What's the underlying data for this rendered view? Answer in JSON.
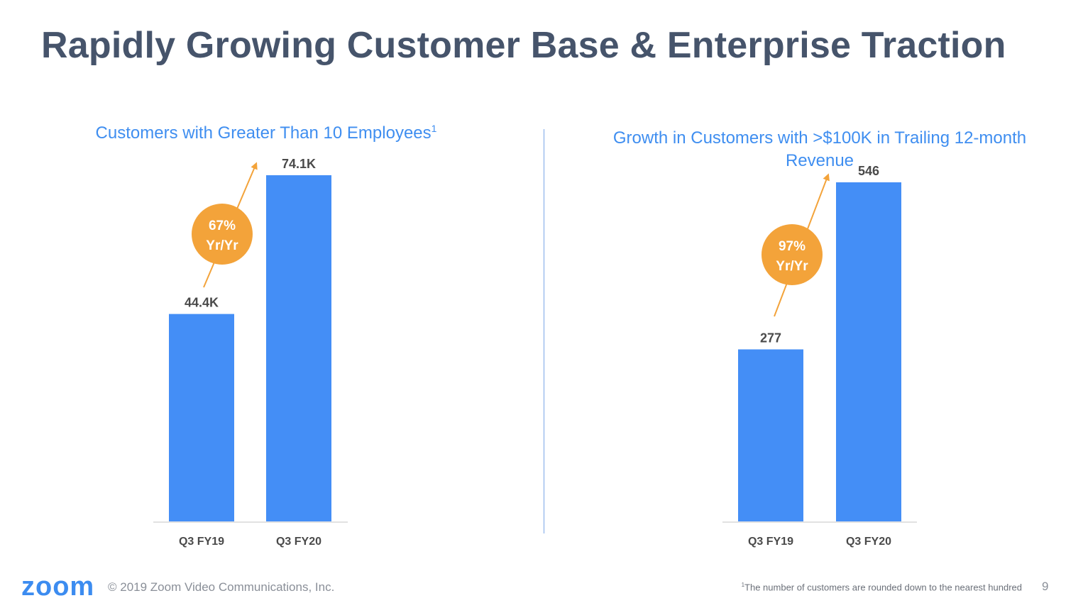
{
  "slide": {
    "title": "Rapidly Growing Customer Base & Enterprise Traction",
    "copyright": "© 2019 Zoom Video Communications, Inc.",
    "logo_text": "zoom",
    "footnote_marker": "1",
    "footnote": "The number of customers are rounded down to the nearest hundred",
    "page_number": "9"
  },
  "colors": {
    "title": "#46546b",
    "bar": "#448ef6",
    "accent_title": "#3f8ef0",
    "growth_badge": "#f3a33a",
    "label": "#4a4a4a"
  },
  "chart_data": [
    {
      "type": "bar",
      "title": "Customers with Greater Than 10 Employees",
      "title_superscript": "1",
      "categories": [
        "Q3 FY19",
        "Q3 FY20"
      ],
      "values": [
        44.4,
        74.1
      ],
      "value_labels": [
        "44.4K",
        "74.1K"
      ],
      "units": "thousands of customers",
      "ylim": [
        0,
        74.1
      ],
      "growth_badge": {
        "line1": "67%",
        "line2": "Yr/Yr"
      }
    },
    {
      "type": "bar",
      "title": "Growth in Customers with >$100K in Trailing 12-month Revenue",
      "categories": [
        "Q3 FY19",
        "Q3 FY20"
      ],
      "values": [
        277,
        546
      ],
      "value_labels": [
        "277",
        "546"
      ],
      "units": "customers",
      "ylim": [
        0,
        546
      ],
      "growth_badge": {
        "line1": "97%",
        "line2": "Yr/Yr"
      }
    }
  ]
}
